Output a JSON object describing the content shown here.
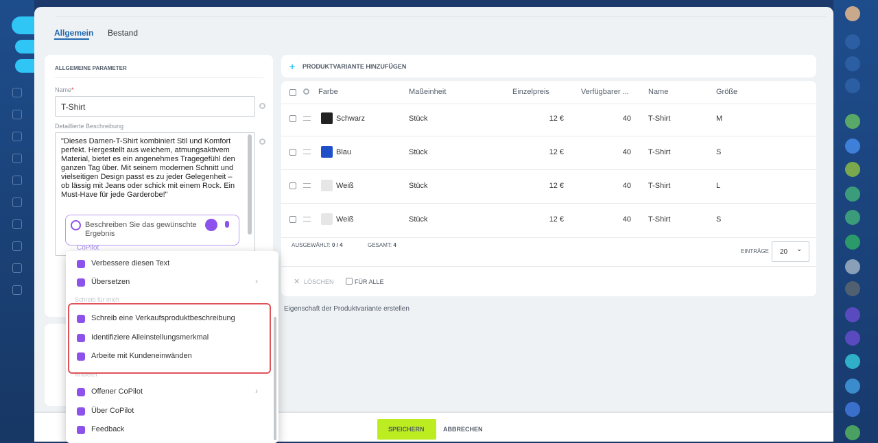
{
  "tabs": [
    "Allgemein",
    "Bestand"
  ],
  "params": {
    "title": "ALLGEMEINE PARAMETER",
    "name_label": "Name",
    "name_value": "T-Shirt",
    "desc_label": "Detaillierte Beschreibung",
    "desc_text": "\"Dieses Damen-T-Shirt kombiniert Stil und Komfort perfekt. Hergestellt aus weichem, atmungsaktivem Material, bietet es ein angenehmes Tragegefühl den ganzen Tag über. Mit seinem modernen Schnitt und vielseitigen Design passt es zu jeder Gelegenheit – ob lässig mit Jeans oder schick mit einem Rock. Ein Must-Have für jede Garderobe!\"",
    "copilot_placeholder": "Beschreiben Sie das gewünschte Ergebnis",
    "copilot_label": "CoPilot"
  },
  "menu": {
    "items1": [
      "Verbessere diesen Text",
      "Übersetzen"
    ],
    "section1": "Schreib für mich",
    "items2": [
      "Schreib eine Verkaufsproduktbeschreibung",
      "Identifiziere Alleinstellungsmerkmal",
      "Arbeite mit Kundeneinwänden"
    ],
    "section2": "Anbieter",
    "items3": [
      "Offener CoPilot",
      "Über CoPilot",
      "Feedback"
    ]
  },
  "variants": {
    "add": "PRODUKTVARIANTE HINZUFÜGEN",
    "columns": [
      "Farbe",
      "Maßeinheit",
      "Einzelpreis",
      "Verfügbarer ...",
      "Name",
      "Größe"
    ],
    "rows": [
      [
        "Schwarz",
        "Stück",
        "12 €",
        40,
        "T-Shirt",
        "M"
      ],
      [
        "Blau",
        "Stück",
        "12 €",
        40,
        "T-Shirt",
        "S"
      ],
      [
        "Weiß",
        "Stück",
        "12 €",
        40,
        "T-Shirt",
        "L"
      ],
      [
        "Weiß",
        "Stück",
        "12 €",
        40,
        "T-Shirt",
        "S"
      ]
    ],
    "swatches": [
      "#222222",
      "#1f4fc9",
      "#e6e6e6",
      "#e6e6e6"
    ],
    "selected_label": "AUSGEWÄHLT:",
    "selected": "0 / 4",
    "total_label": "GESAMT:",
    "total": "4",
    "entries_label": "EINTRÄGE",
    "entries": "20",
    "delete": "LÖSCHEN",
    "for_all": "FÜR ALLE",
    "create_prop": "Eigenschaft der Produktvariante erstellen"
  },
  "footer": {
    "save": "SPEICHERN",
    "cancel": "ABBRECHEN"
  }
}
